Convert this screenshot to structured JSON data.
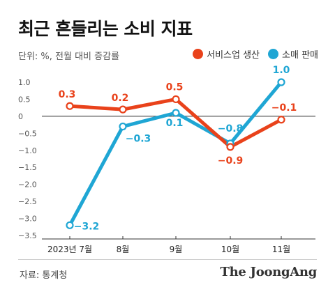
{
  "header": {
    "title": "최근 흔들리는 소비 지표",
    "unit_note": "단위: %, 전월 대비 증감률"
  },
  "legend": {
    "items": [
      {
        "label": "서비스업 생산",
        "color": "#e9421b"
      },
      {
        "label": "소매 판매",
        "color": "#1fa6d4"
      }
    ]
  },
  "chart_data": {
    "type": "line",
    "categories": [
      "2023년 7월",
      "8월",
      "9월",
      "10월",
      "11월"
    ],
    "series": [
      {
        "name": "서비스업 생산",
        "color": "#e9421b",
        "values": [
          0.3,
          0.2,
          0.5,
          -0.9,
          -0.1
        ],
        "labels": [
          "0.3",
          "0.2",
          "0.5",
          "−0.9",
          "−0.1"
        ]
      },
      {
        "name": "소매 판매",
        "color": "#1fa6d4",
        "values": [
          -3.2,
          -0.3,
          0.1,
          -0.8,
          1.0
        ],
        "labels": [
          "−3.2",
          "−0.3",
          "0.1",
          "−0.8",
          "1.0"
        ]
      }
    ],
    "yticks": [
      1.0,
      0.5,
      0,
      -0.5,
      -1.0,
      -1.5,
      -2.0,
      -2.5,
      -3.0,
      -3.5
    ],
    "ytick_labels": [
      "1.0",
      "0.5",
      "0",
      "−0.5",
      "−1.0",
      "−1.5",
      "−2.0",
      "−2.5",
      "−3.0",
      "−3.5"
    ],
    "ylim": [
      -3.5,
      1.0
    ],
    "xlabel": "",
    "ylabel": ""
  },
  "footer": {
    "source": "자료: 통계청",
    "brand": "The JoongAng"
  }
}
